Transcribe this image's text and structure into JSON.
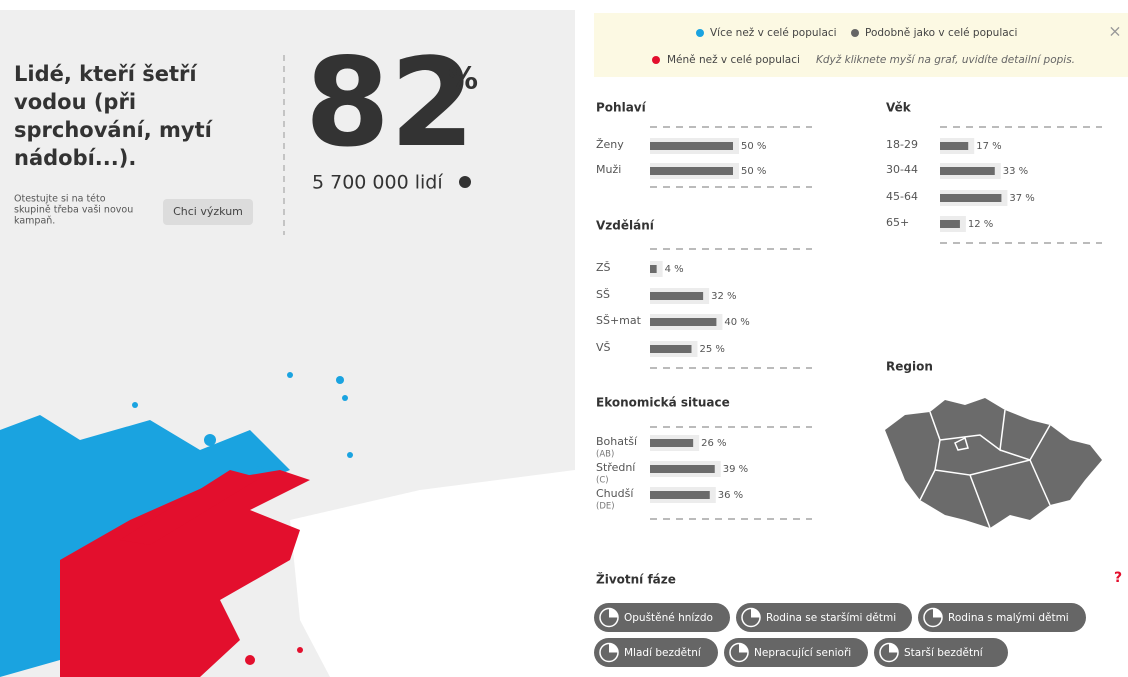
{
  "left": {
    "title_lines": [
      "Lidé, kteří šetří",
      "vodou (při",
      "sprchování, mytí",
      "nádobí...)."
    ],
    "percent": 82,
    "percent_sign": "%",
    "count": "5 700 000 lidí",
    "cta_lines": [
      "Otestujte si na této",
      "skupině třeba vaši novou",
      "kampaň."
    ],
    "button": "Chci výzkum"
  },
  "legend": {
    "more": "Více než v celé populaci",
    "similar": "Podobně jako v celé populaci",
    "less": "Méně než v celé populaci",
    "hint": "Když kliknete myší na graf, uvidíte detailní popis."
  },
  "sections": [
    {
      "title": "Pohlaví",
      "items": [
        {
          "label": "Ženy",
          "value": 50,
          "value_label": "50 %"
        },
        {
          "label": "Muži",
          "value": 50,
          "value_label": "50 %"
        }
      ]
    },
    {
      "title": "Věk",
      "items": [
        {
          "label": "18-29",
          "value": 17,
          "value_label": "17 %"
        },
        {
          "label": "30-44",
          "value": 33,
          "value_label": "33 %"
        },
        {
          "label": "45-64",
          "value": 37,
          "value_label": "37 %"
        },
        {
          "label": "65+",
          "value": 12,
          "value_label": "12 %"
        }
      ]
    },
    {
      "title": "Vzdělání",
      "items": [
        {
          "label": "ZŠ",
          "value": 4,
          "value_label": "4 %"
        },
        {
          "label": "SŠ",
          "value": 32,
          "value_label": "32 %"
        },
        {
          "label": "SŠ+mat",
          "value": 40,
          "value_label": "40 %"
        },
        {
          "label": "VŠ",
          "value": 25,
          "value_label": "25 %"
        }
      ]
    },
    {
      "title": "Ekonomická situace",
      "items": [
        {
          "label": "Bohatší",
          "sublabel": "(AB)",
          "value": 26,
          "value_label": "26 %"
        },
        {
          "label": "Střední",
          "sublabel": "(C)",
          "value": 39,
          "value_label": "39 %"
        },
        {
          "label": "Chudší",
          "sublabel": "(DE)",
          "value": 36,
          "value_label": "36 %"
        }
      ]
    }
  ],
  "region": {
    "title": "Region"
  },
  "life_stages": {
    "title": "Životní fáze",
    "items": [
      "Opuštěné hnízdo",
      "Rodina se staršími dětmi",
      "Rodina s malými dětmi",
      "Mladí bezdětní",
      "Nepracující senioři",
      "Starší bezdětní"
    ]
  },
  "help": "?"
}
